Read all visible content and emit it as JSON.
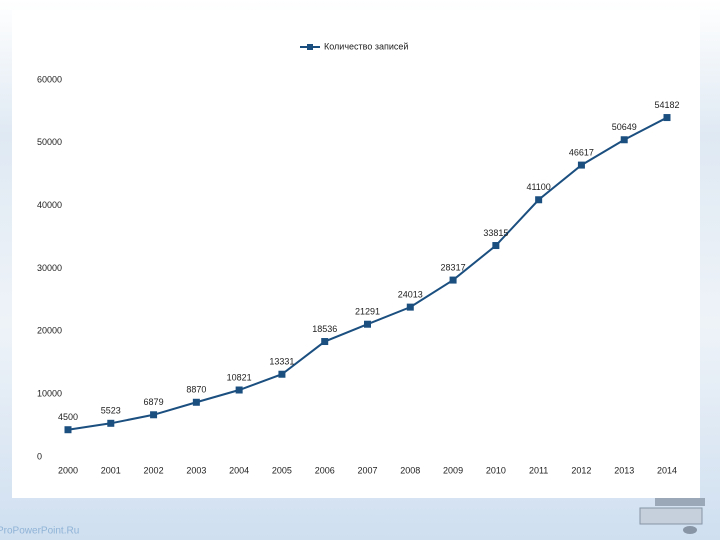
{
  "chart_data": {
    "type": "line",
    "legend_label": "Количество записей",
    "categories": [
      "2000",
      "2001",
      "2002",
      "2003",
      "2004",
      "2005",
      "2006",
      "2007",
      "2008",
      "2009",
      "2010",
      "2011",
      "2012",
      "2013",
      "2014"
    ],
    "series": [
      {
        "name": "Количество записей",
        "color": "#1b4f80",
        "values": [
          4500,
          5523,
          6879,
          8870,
          10821,
          13331,
          18536,
          21291,
          24013,
          28317,
          33815,
          41100,
          46617,
          50649,
          54182
        ]
      }
    ],
    "ylim": [
      0,
      60000
    ],
    "yticks": [
      0,
      10000,
      20000,
      30000,
      40000,
      50000,
      60000
    ],
    "grid": false,
    "legend": "top"
  },
  "watermark": "ProPowerPoint.Ru"
}
